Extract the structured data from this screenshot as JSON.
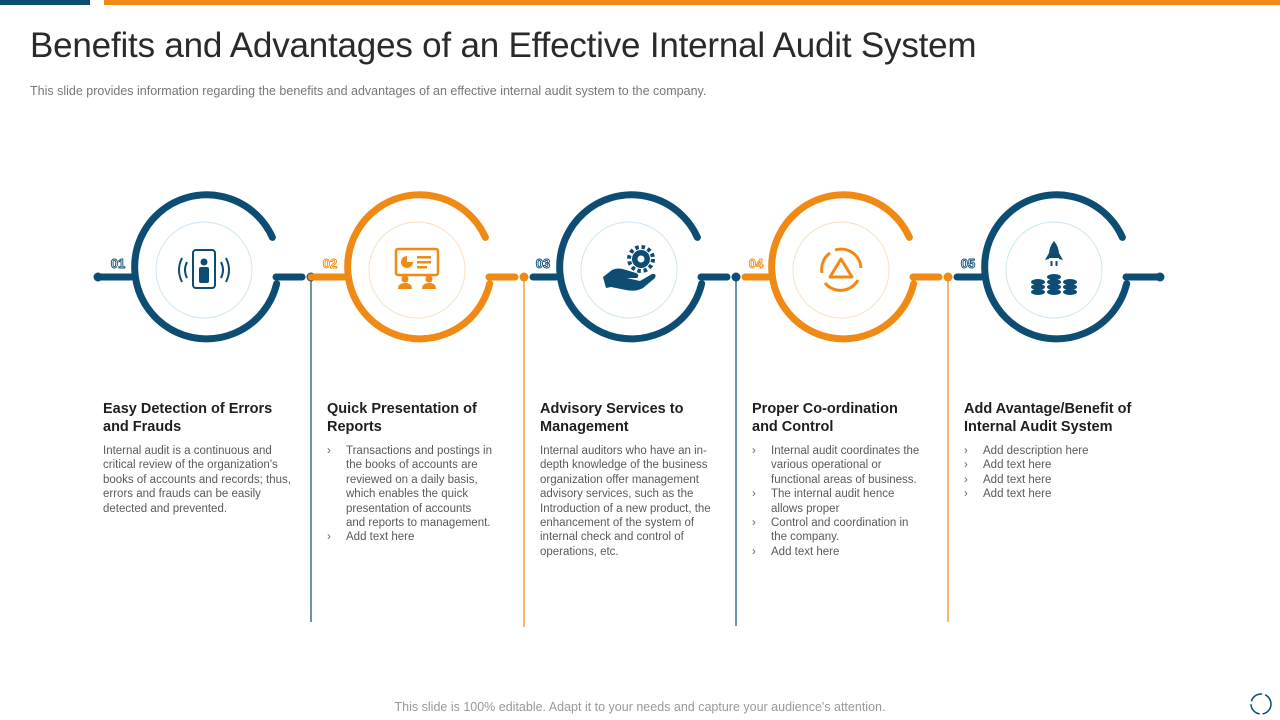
{
  "header": {
    "title": "Benefits and Advantages of an Effective Internal Audit System",
    "subtitle": "This slide provides  information  regarding  the benefits  and advantages  of an effective  internal audit system to the company."
  },
  "colors": {
    "blue": "#0d4d73",
    "orange": "#f08a14"
  },
  "steps": [
    {
      "number": "01",
      "color": "blue",
      "icon": "person-scanner-icon",
      "title": "Easy Detection of Errors and Frauds",
      "text": "Internal audit is a continuous and critical review of the organization's books of accounts and records; thus, errors and frauds can be easily detected and prevented."
    },
    {
      "number": "02",
      "color": "orange",
      "icon": "presentation-icon",
      "title": "Quick Presentation of Reports",
      "bullets": [
        "Transactions and postings in the books of accounts are reviewed on a daily basis, which enables the quick presentation of accounts and reports to management.",
        "Add text here"
      ]
    },
    {
      "number": "03",
      "color": "blue",
      "icon": "hand-gear-icon",
      "title": "Advisory Services to Management",
      "text": "Internal auditors who have an in-depth knowledge of the business organization offer management advisory services, such as the Introduction of a new product, the enhancement of the system of internal check and control of operations, etc."
    },
    {
      "number": "04",
      "color": "orange",
      "icon": "warning-cycle-icon",
      "title": "Proper Co-ordination and Control",
      "bullets": [
        "Internal audit coordinates the various operational or functional areas of business.",
        "The internal audit hence allows proper",
        "Control and coordination in the company.",
        "Add text here"
      ]
    },
    {
      "number": "05",
      "color": "blue",
      "icon": "rocket-coins-icon",
      "title": "Add Avantage/Benefit of Internal Audit System",
      "bullets": [
        "Add description here",
        "Add text here",
        "Add text here",
        "Add text here"
      ]
    }
  ],
  "footer": "This slide is 100% editable. Adapt it to your needs and capture your audience's attention."
}
